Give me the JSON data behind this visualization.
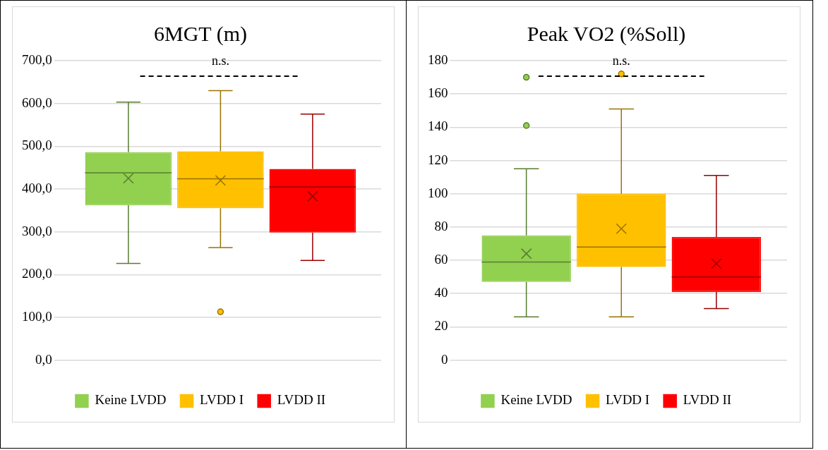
{
  "chart_data": [
    {
      "type": "box",
      "title": "6MGT (m)",
      "categories": [
        null
      ],
      "ylim": [
        0,
        700
      ],
      "yticks": [
        {
          "value": 0,
          "label": "0,0"
        },
        {
          "value": 100,
          "label": "100,0"
        },
        {
          "value": 200,
          "label": "200,0"
        },
        {
          "value": 300,
          "label": "300,0"
        },
        {
          "value": 400,
          "label": "400,0"
        },
        {
          "value": 500,
          "label": "500,0"
        },
        {
          "value": 600,
          "label": "600,0"
        },
        {
          "value": 700,
          "label": "700,0"
        }
      ],
      "grid": "y",
      "legend": "bottom",
      "annotations": [
        "n.s."
      ],
      "series": [
        {
          "name": "Keine LVDD",
          "color": "#92d050",
          "boxes": [
            {
              "low": 226,
              "q1": 362,
              "median": 438,
              "q3": 486,
              "high": 603,
              "mean": 425
            }
          ]
        },
        {
          "name": "LVDD I",
          "color": "#ffc000",
          "boxes": [
            {
              "low": 263,
              "q1": 355,
              "median": 424,
              "q3": 488,
              "high": 630,
              "mean": 420,
              "outliers": [
                113
              ]
            }
          ]
        },
        {
          "name": "LVDD II",
          "color": "#ff0000",
          "boxes": [
            {
              "low": 233,
              "q1": 298,
              "median": 405,
              "q3": 447,
              "high": 575,
              "mean": 383
            }
          ]
        }
      ]
    },
    {
      "type": "box",
      "title": "Peak VO2 (%Soll)",
      "categories": [
        null
      ],
      "ylim": [
        0,
        180
      ],
      "yticks": [
        0,
        20,
        40,
        60,
        80,
        100,
        120,
        140,
        160,
        180
      ],
      "grid": "y",
      "legend": "bottom",
      "annotations": [
        "n.s."
      ],
      "series": [
        {
          "name": "Keine LVDD",
          "color": "#92d050",
          "boxes": [
            {
              "low": 26,
              "q1": 47,
              "median": 59,
              "q3": 75,
              "high": 115,
              "mean": 64,
              "outliers": [
                141,
                170
              ]
            }
          ]
        },
        {
          "name": "LVDD I",
          "color": "#ffc000",
          "boxes": [
            {
              "low": 26,
              "q1": 56,
              "median": 68,
              "q3": 100,
              "high": 151,
              "mean": 79,
              "outliers": [
                172
              ]
            }
          ]
        },
        {
          "name": "LVDD II",
          "color": "#ff0000",
          "boxes": [
            {
              "low": 31,
              "q1": 41,
              "median": 50,
              "q3": 74,
              "high": 111,
              "mean": 58
            }
          ]
        }
      ]
    }
  ]
}
